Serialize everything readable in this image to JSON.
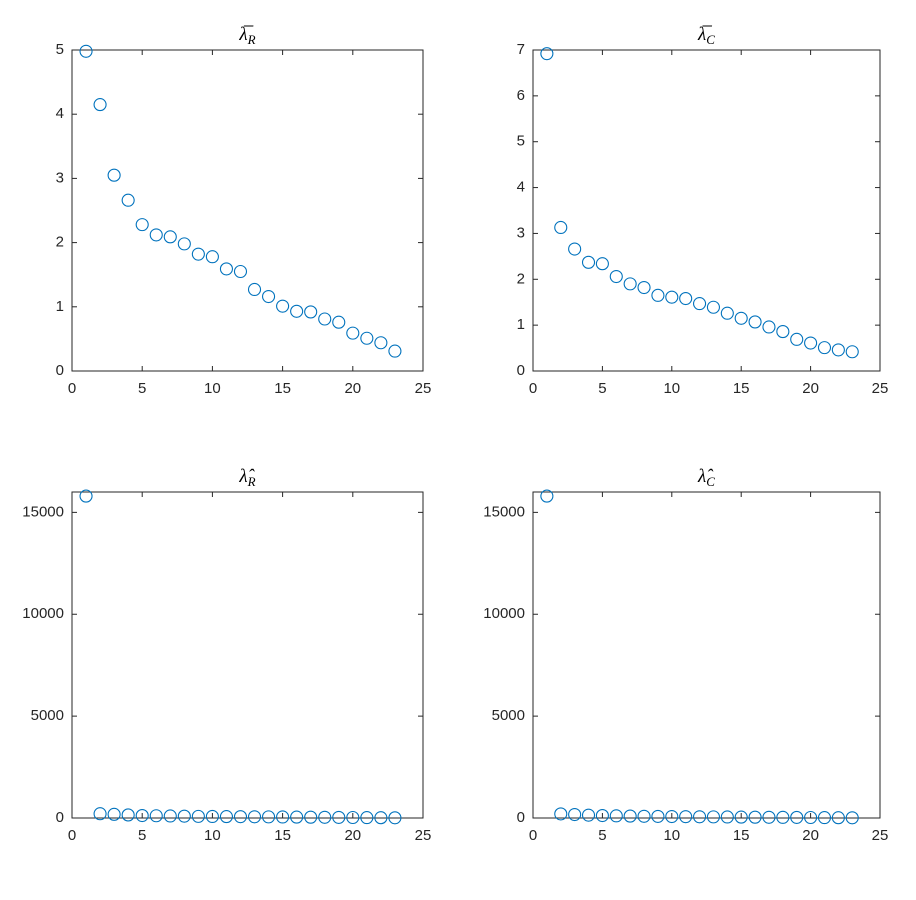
{
  "chart_data": [
    {
      "type": "scatter",
      "title": {
        "base": "λ̅",
        "sub": "R"
      },
      "color": "#0072bd",
      "x": [
        1,
        2,
        3,
        4,
        5,
        6,
        7,
        8,
        9,
        10,
        11,
        12,
        13,
        14,
        15,
        16,
        17,
        18,
        19,
        20,
        21,
        22,
        23
      ],
      "values": [
        4.98,
        4.15,
        3.05,
        2.66,
        2.28,
        2.12,
        2.09,
        1.98,
        1.82,
        1.78,
        1.59,
        1.55,
        1.27,
        1.16,
        1.01,
        0.93,
        0.92,
        0.81,
        0.76,
        0.59,
        0.51,
        0.44,
        0.31
      ],
      "xlim": [
        0,
        25
      ],
      "xticks": [
        0,
        5,
        10,
        15,
        20,
        25
      ],
      "ylim": [
        0,
        5
      ],
      "yticks": [
        0,
        1,
        2,
        3,
        4,
        5
      ]
    },
    {
      "type": "scatter",
      "title": {
        "base": "λ̅",
        "sub": "C"
      },
      "color": "#0072bd",
      "x": [
        1,
        2,
        3,
        4,
        5,
        6,
        7,
        8,
        9,
        10,
        11,
        12,
        13,
        14,
        15,
        16,
        17,
        18,
        19,
        20,
        21,
        22,
        23
      ],
      "values": [
        6.92,
        3.13,
        2.66,
        2.37,
        2.34,
        2.06,
        1.9,
        1.82,
        1.65,
        1.61,
        1.58,
        1.47,
        1.39,
        1.26,
        1.15,
        1.07,
        0.96,
        0.86,
        0.69,
        0.61,
        0.51,
        0.46,
        0.42
      ],
      "xlim": [
        0,
        25
      ],
      "xticks": [
        0,
        5,
        10,
        15,
        20,
        25
      ],
      "ylim": [
        0,
        7
      ],
      "yticks": [
        0,
        1,
        2,
        3,
        4,
        5,
        6,
        7
      ]
    },
    {
      "type": "scatter",
      "title": {
        "base": "λ̂",
        "sub": "R"
      },
      "color": "#0072bd",
      "x": [
        1,
        2,
        3,
        4,
        5,
        6,
        7,
        8,
        9,
        10,
        11,
        12,
        13,
        14,
        15,
        16,
        17,
        18,
        19,
        20,
        21,
        22,
        23
      ],
      "values": [
        15800,
        210,
        180,
        150,
        120,
        110,
        100,
        90,
        80,
        75,
        70,
        65,
        60,
        55,
        50,
        45,
        40,
        35,
        30,
        25,
        20,
        15,
        10
      ],
      "xlim": [
        0,
        25
      ],
      "xticks": [
        0,
        5,
        10,
        15,
        20,
        25
      ],
      "ylim": [
        0,
        16000
      ],
      "yticks": [
        0,
        5000,
        10000,
        15000
      ]
    },
    {
      "type": "scatter",
      "title": {
        "base": "λ̂",
        "sub": "C"
      },
      "color": "#0072bd",
      "x": [
        1,
        2,
        3,
        4,
        5,
        6,
        7,
        8,
        9,
        10,
        11,
        12,
        13,
        14,
        15,
        16,
        17,
        18,
        19,
        20,
        21,
        22,
        23
      ],
      "values": [
        15800,
        200,
        170,
        140,
        120,
        105,
        95,
        85,
        78,
        72,
        66,
        60,
        55,
        50,
        45,
        40,
        36,
        32,
        28,
        24,
        20,
        15,
        10
      ],
      "xlim": [
        0,
        25
      ],
      "xticks": [
        0,
        5,
        10,
        15,
        20,
        25
      ],
      "ylim": [
        0,
        16000
      ],
      "yticks": [
        0,
        5000,
        10000,
        15000
      ]
    }
  ]
}
